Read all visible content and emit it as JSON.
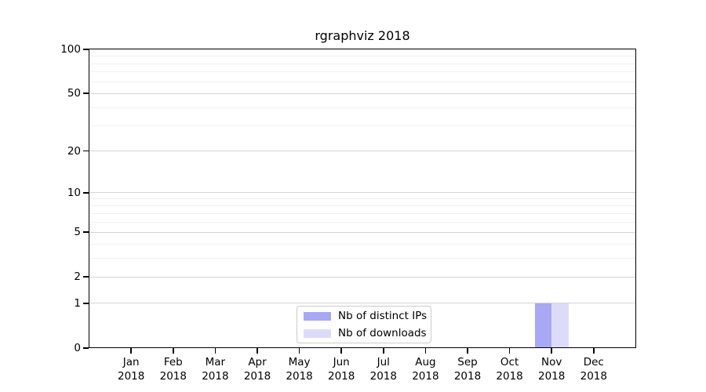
{
  "chart_data": {
    "type": "bar",
    "title": "rgraphviz 2018",
    "x_year": "2018",
    "categories": [
      "Jan",
      "Feb",
      "Mar",
      "Apr",
      "May",
      "Jun",
      "Jul",
      "Aug",
      "Sep",
      "Oct",
      "Nov",
      "Dec"
    ],
    "series": [
      {
        "name": "Nb of distinct IPs",
        "color": "#a8a8f6",
        "values": [
          0,
          0,
          0,
          0,
          0,
          0,
          0,
          0,
          0,
          0,
          1,
          0
        ]
      },
      {
        "name": "Nb of downloads",
        "color": "#dcdcfa",
        "values": [
          0,
          0,
          0,
          0,
          0,
          0,
          0,
          0,
          0,
          0,
          1,
          0
        ]
      }
    ],
    "y_axis": {
      "scale": "log1p",
      "lim": [
        0,
        100
      ],
      "major_ticks": [
        0,
        1,
        2,
        5,
        10,
        20,
        50,
        100
      ],
      "minor_gridlines": [
        3,
        4,
        6,
        7,
        8,
        9,
        30,
        40,
        60,
        70,
        80,
        90
      ]
    },
    "grid": {
      "orientation": "horizontal",
      "major_color": "#d4d4d4",
      "minor_color": "#f0f0f0"
    },
    "legend_position": "inside-bottom-center"
  }
}
